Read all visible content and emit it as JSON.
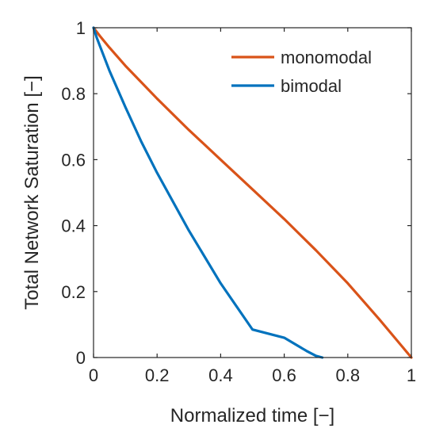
{
  "chart_data": {
    "type": "line",
    "title": "",
    "xlabel": "Normalized time [−]",
    "ylabel": "Total Network Saturation [−]",
    "xlim": [
      0,
      1
    ],
    "ylim": [
      0,
      1
    ],
    "xticks": [
      0,
      0.2,
      0.4,
      0.6,
      0.8,
      1
    ],
    "xtick_labels": [
      "0",
      "0.2",
      "0.4",
      "0.6",
      "0.8",
      "1"
    ],
    "yticks": [
      0,
      0.2,
      0.4,
      0.6,
      0.8,
      1
    ],
    "ytick_labels": [
      "0",
      "0.2",
      "0.4",
      "0.6",
      "0.8",
      "1"
    ],
    "grid": false,
    "legend_position": "top-right",
    "series": [
      {
        "name": "monomodal",
        "color": "#D95319",
        "x": [
          0,
          0.02,
          0.05,
          0.1,
          0.15,
          0.2,
          0.3,
          0.4,
          0.5,
          0.6,
          0.7,
          0.8,
          0.9,
          1.0
        ],
        "y": [
          1,
          0.975,
          0.94,
          0.885,
          0.835,
          0.785,
          0.69,
          0.6,
          0.51,
          0.42,
          0.325,
          0.225,
          0.115,
          0
        ]
      },
      {
        "name": "bimodal",
        "color": "#0072BD",
        "x": [
          0,
          0.01,
          0.03,
          0.05,
          0.1,
          0.15,
          0.2,
          0.3,
          0.4,
          0.5,
          0.6,
          0.67,
          0.7,
          0.72
        ],
        "y": [
          1,
          0.97,
          0.92,
          0.87,
          0.76,
          0.655,
          0.56,
          0.385,
          0.225,
          0.085,
          0.06,
          0.02,
          0.005,
          0
        ]
      }
    ]
  }
}
